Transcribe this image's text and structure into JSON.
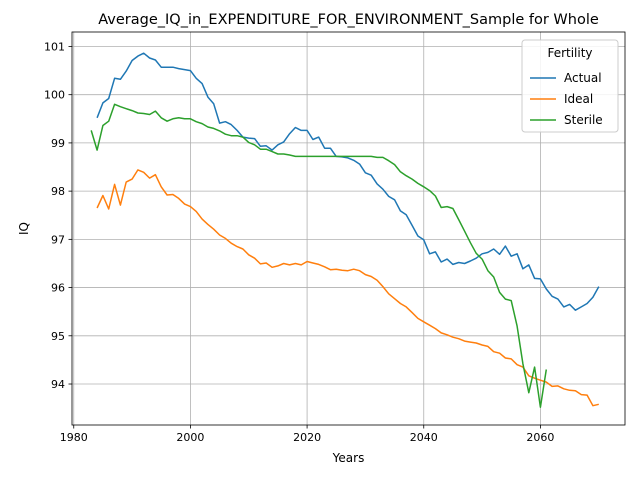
{
  "chart_data": {
    "type": "line",
    "title": "Average_IQ_in_EXPENDITURE_FOR_ENVIRONMENT_Sample for Whole",
    "xlabel": "Years",
    "ylabel": "IQ",
    "xlim": [
      1979.7,
      2074.5
    ],
    "ylim": [
      93.15,
      101.3
    ],
    "xticks": [
      1980,
      2000,
      2020,
      2040,
      2060
    ],
    "yticks": [
      94,
      95,
      96,
      97,
      98,
      99,
      100,
      101
    ],
    "grid": true,
    "legend": {
      "title": "Fertility",
      "position": "top-right"
    },
    "series": [
      {
        "name": "Actual",
        "color": "#1f77b4",
        "x": [
          1984,
          1985,
          1986,
          1987,
          1988,
          1989,
          1990,
          1991,
          1992,
          1993,
          1994,
          1995,
          1996,
          1997,
          1998,
          1999,
          2000,
          2001,
          2002,
          2003,
          2004,
          2005,
          2006,
          2007,
          2008,
          2009,
          2010,
          2011,
          2012,
          2013,
          2014,
          2015,
          2016,
          2017,
          2018,
          2019,
          2020,
          2021,
          2022,
          2023,
          2024,
          2025,
          2026,
          2027,
          2028,
          2029,
          2030,
          2031,
          2032,
          2033,
          2034,
          2035,
          2036,
          2037,
          2038,
          2039,
          2040,
          2041,
          2042,
          2043,
          2044,
          2045,
          2046,
          2047,
          2048,
          2049,
          2050,
          2051,
          2052,
          2053,
          2054,
          2055,
          2056,
          2057,
          2058,
          2059,
          2060,
          2061,
          2062,
          2063,
          2064,
          2065,
          2066,
          2067,
          2068,
          2069,
          2070
        ],
        "y": [
          99.52,
          99.83,
          99.92,
          100.34,
          100.32,
          100.49,
          100.71,
          100.8,
          100.86,
          100.76,
          100.72,
          100.57,
          100.57,
          100.57,
          100.54,
          100.52,
          100.5,
          100.34,
          100.23,
          99.95,
          99.81,
          99.41,
          99.44,
          99.38,
          99.26,
          99.12,
          99.1,
          99.09,
          98.93,
          98.94,
          98.85,
          98.96,
          99.02,
          99.19,
          99.32,
          99.26,
          99.26,
          99.07,
          99.12,
          98.89,
          98.89,
          98.72,
          98.71,
          98.69,
          98.64,
          98.56,
          98.38,
          98.33,
          98.15,
          98.04,
          97.89,
          97.82,
          97.59,
          97.51,
          97.29,
          97.07,
          96.99,
          96.7,
          96.74,
          96.53,
          96.59,
          96.48,
          96.52,
          96.5,
          96.55,
          96.61,
          96.7,
          96.73,
          96.8,
          96.69,
          96.86,
          96.65,
          96.7,
          96.39,
          96.47,
          96.19,
          96.18,
          95.97,
          95.82,
          95.76,
          95.6,
          95.65,
          95.53,
          95.6,
          95.67,
          95.8,
          96.02
        ]
      },
      {
        "name": "Ideal",
        "color": "#ff7f0e",
        "x": [
          1984,
          1985,
          1986,
          1987,
          1988,
          1989,
          1990,
          1991,
          1992,
          1993,
          1994,
          1995,
          1996,
          1997,
          1998,
          1999,
          2000,
          2001,
          2002,
          2003,
          2004,
          2005,
          2006,
          2007,
          2008,
          2009,
          2010,
          2011,
          2012,
          2013,
          2014,
          2015,
          2016,
          2017,
          2018,
          2019,
          2020,
          2021,
          2022,
          2023,
          2024,
          2025,
          2026,
          2027,
          2028,
          2029,
          2030,
          2031,
          2032,
          2033,
          2034,
          2035,
          2036,
          2037,
          2038,
          2039,
          2040,
          2041,
          2042,
          2043,
          2044,
          2045,
          2046,
          2047,
          2048,
          2049,
          2050,
          2051,
          2052,
          2053,
          2054,
          2055,
          2056,
          2057,
          2058,
          2059,
          2060,
          2061,
          2062,
          2063,
          2064,
          2065,
          2066,
          2067,
          2068,
          2069,
          2070
        ],
        "y": [
          97.65,
          97.91,
          97.63,
          98.14,
          97.71,
          98.19,
          98.25,
          98.44,
          98.39,
          98.27,
          98.34,
          98.09,
          97.92,
          97.93,
          97.85,
          97.73,
          97.68,
          97.58,
          97.42,
          97.31,
          97.21,
          97.09,
          97.02,
          96.92,
          96.85,
          96.8,
          96.68,
          96.61,
          96.49,
          96.51,
          96.42,
          96.45,
          96.5,
          96.47,
          96.5,
          96.47,
          96.54,
          96.51,
          96.48,
          96.43,
          96.37,
          96.38,
          96.36,
          96.35,
          96.38,
          96.35,
          96.27,
          96.23,
          96.15,
          96.02,
          95.87,
          95.77,
          95.67,
          95.6,
          95.48,
          95.36,
          95.29,
          95.22,
          95.15,
          95.06,
          95.02,
          94.97,
          94.94,
          94.89,
          94.87,
          94.85,
          94.81,
          94.78,
          94.67,
          94.64,
          94.54,
          94.52,
          94.4,
          94.35,
          94.17,
          94.12,
          94.08,
          94.04,
          93.95,
          93.96,
          93.9,
          93.87,
          93.86,
          93.78,
          93.77,
          93.55,
          93.58
        ]
      },
      {
        "name": "Sterile",
        "color": "#2ca02c",
        "x": [
          1983,
          1984,
          1985,
          1986,
          1987,
          1988,
          1989,
          1990,
          1991,
          1992,
          1993,
          1994,
          1995,
          1996,
          1997,
          1998,
          1999,
          2000,
          2001,
          2002,
          2003,
          2004,
          2005,
          2006,
          2007,
          2008,
          2009,
          2010,
          2011,
          2012,
          2013,
          2014,
          2015,
          2016,
          2017,
          2018,
          2019,
          2020,
          2021,
          2022,
          2023,
          2024,
          2025,
          2026,
          2027,
          2028,
          2029,
          2030,
          2031,
          2032,
          2033,
          2034,
          2035,
          2036,
          2037,
          2038,
          2039,
          2040,
          2041,
          2042,
          2043,
          2044,
          2045,
          2046,
          2047,
          2048,
          2049,
          2050,
          2051,
          2052,
          2053,
          2054,
          2055,
          2056,
          2057,
          2058,
          2059,
          2060,
          2061
        ],
        "y": [
          99.26,
          98.85,
          99.36,
          99.45,
          99.8,
          99.75,
          99.71,
          99.67,
          99.62,
          99.61,
          99.59,
          99.66,
          99.52,
          99.45,
          99.5,
          99.52,
          99.5,
          99.5,
          99.44,
          99.4,
          99.33,
          99.3,
          99.25,
          99.18,
          99.15,
          99.15,
          99.12,
          99.01,
          98.96,
          98.87,
          98.87,
          98.82,
          98.77,
          98.77,
          98.75,
          98.72,
          98.72,
          98.72,
          98.72,
          98.72,
          98.72,
          98.72,
          98.72,
          98.72,
          98.72,
          98.72,
          98.72,
          98.72,
          98.72,
          98.7,
          98.7,
          98.63,
          98.55,
          98.4,
          98.32,
          98.25,
          98.16,
          98.09,
          98.01,
          97.9,
          97.66,
          97.68,
          97.64,
          97.41,
          97.17,
          96.93,
          96.71,
          96.59,
          96.35,
          96.22,
          95.9,
          95.76,
          95.73,
          95.2,
          94.42,
          93.82,
          94.35,
          93.52,
          94.3
        ]
      }
    ]
  }
}
